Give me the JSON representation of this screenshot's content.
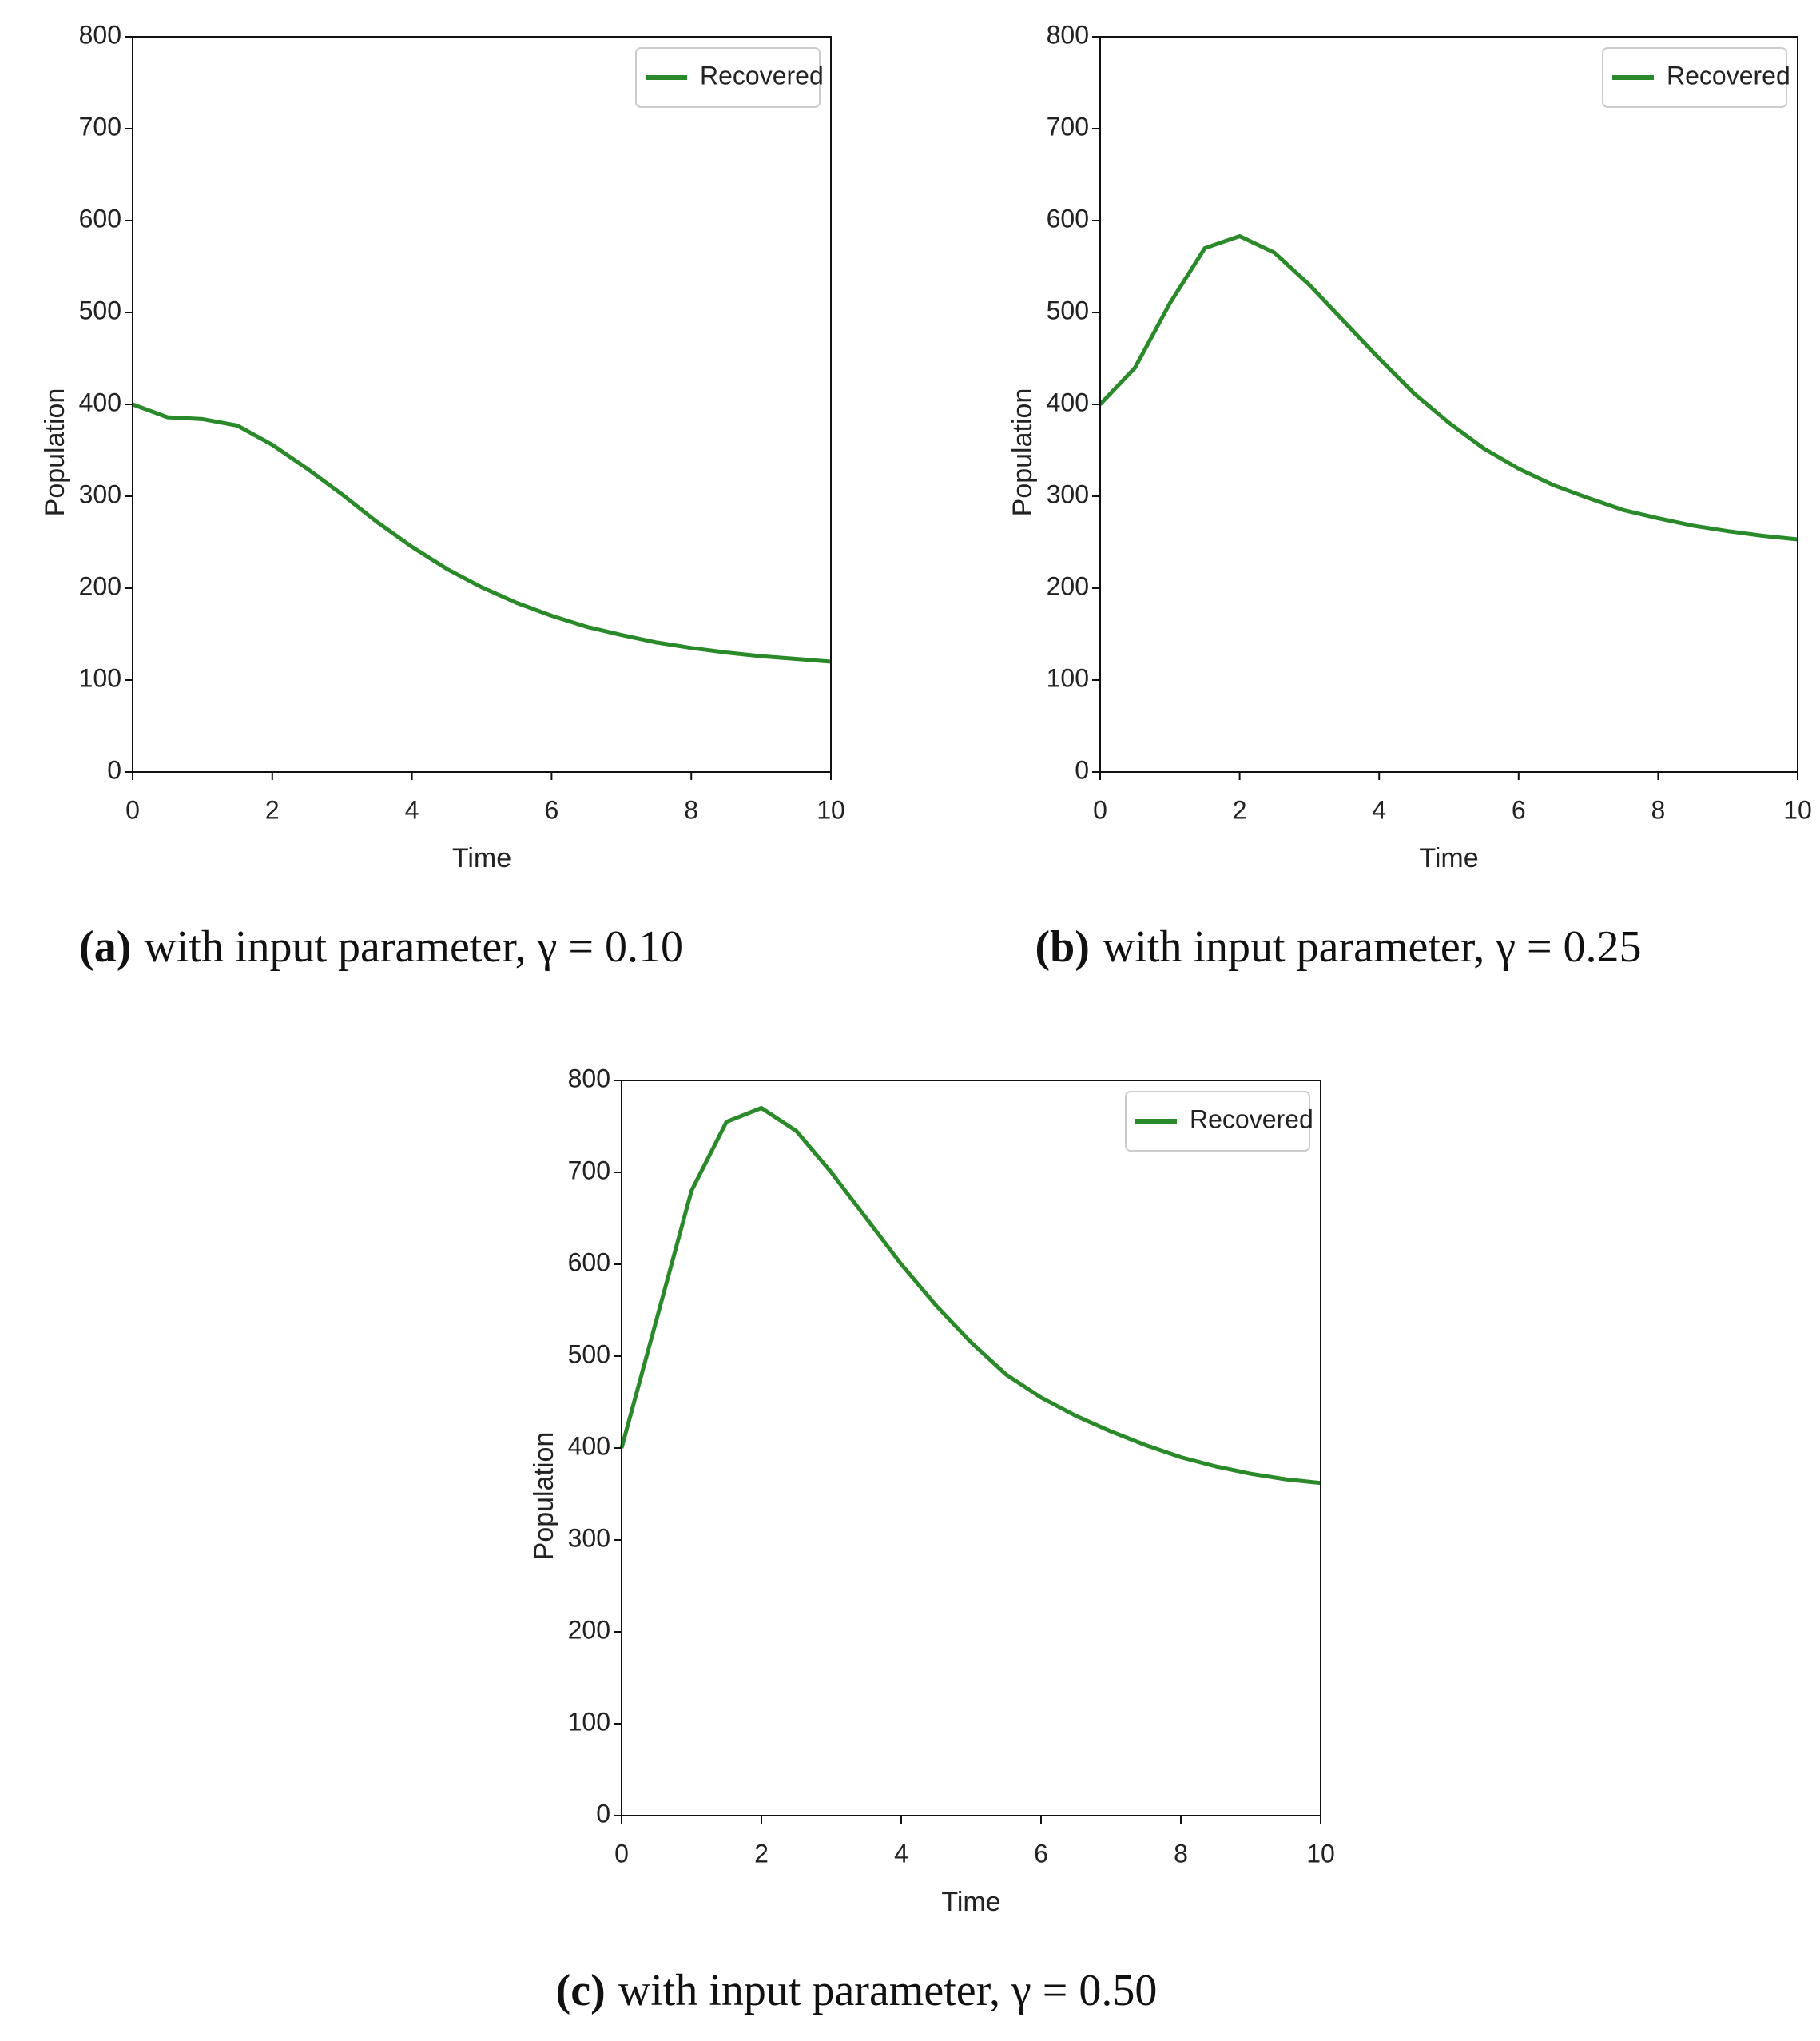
{
  "chart_data": [
    {
      "type": "line",
      "caption_label": "(a)",
      "caption": "with input parameter, γ = 0.10",
      "x_label": "Time",
      "y_label": "Population",
      "x": [
        0,
        0.5,
        1,
        1.5,
        2,
        2.5,
        3,
        3.5,
        4,
        4.5,
        5,
        5.5,
        6,
        6.5,
        7,
        7.5,
        8,
        8.5,
        9,
        9.5,
        10
      ],
      "series": [
        {
          "name": "Recovered",
          "color": "#2a8a2a",
          "values": [
            400,
            386,
            384,
            377,
            356,
            330,
            302,
            272,
            245,
            221,
            201,
            184,
            170,
            158,
            149,
            141,
            135,
            130,
            126,
            123,
            120
          ]
        }
      ],
      "xlim": [
        0,
        10
      ],
      "xticks": [
        0,
        2,
        4,
        6,
        8,
        10
      ],
      "ylim": [
        0,
        800
      ],
      "yticks": [
        0,
        100,
        200,
        300,
        400,
        500,
        600,
        700,
        800
      ],
      "grid": false,
      "legend": "upper right"
    },
    {
      "type": "line",
      "caption_label": "(b)",
      "caption": "with input parameter, γ = 0.25",
      "x_label": "Time",
      "y_label": "Population",
      "x": [
        0,
        0.5,
        1,
        1.5,
        2,
        2.5,
        3,
        3.5,
        4,
        4.5,
        5,
        5.5,
        6,
        6.5,
        7,
        7.5,
        8,
        8.5,
        9,
        9.5,
        10
      ],
      "series": [
        {
          "name": "Recovered",
          "color": "#2a8a2a",
          "values": [
            400,
            440,
            510,
            570,
            583,
            565,
            530,
            490,
            450,
            412,
            380,
            352,
            330,
            312,
            298,
            285,
            276,
            268,
            262,
            257,
            253
          ]
        }
      ],
      "xlim": [
        0,
        10
      ],
      "xticks": [
        0,
        2,
        4,
        6,
        8,
        10
      ],
      "ylim": [
        0,
        800
      ],
      "yticks": [
        0,
        100,
        200,
        300,
        400,
        500,
        600,
        700,
        800
      ],
      "grid": false,
      "legend": "upper right"
    },
    {
      "type": "line",
      "caption_label": "(c)",
      "caption": "with input parameter, γ = 0.50",
      "x_label": "Time",
      "y_label": "Population",
      "x": [
        0,
        0.5,
        1,
        1.5,
        2,
        2.5,
        3,
        3.5,
        4,
        4.5,
        5,
        5.5,
        6,
        6.5,
        7,
        7.5,
        8,
        8.5,
        9,
        9.5,
        10
      ],
      "series": [
        {
          "name": "Recovered",
          "color": "#2a8a2a",
          "values": [
            400,
            540,
            680,
            755,
            770,
            745,
            700,
            650,
            600,
            555,
            515,
            480,
            455,
            435,
            418,
            403,
            390,
            380,
            372,
            366,
            362
          ]
        }
      ],
      "xlim": [
        0,
        10
      ],
      "xticks": [
        0,
        2,
        4,
        6,
        8,
        10
      ],
      "ylim": [
        0,
        800
      ],
      "yticks": [
        0,
        100,
        200,
        300,
        400,
        500,
        600,
        700,
        800
      ],
      "grid": false,
      "legend": "upper right"
    }
  ]
}
